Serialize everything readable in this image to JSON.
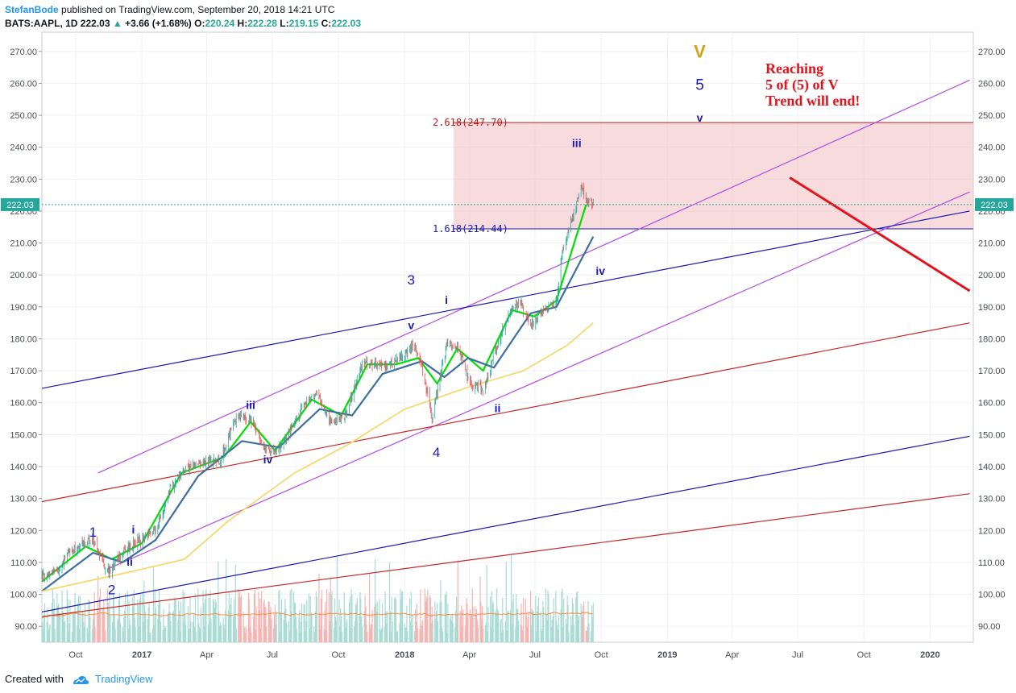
{
  "header": {
    "author": "StefanBode",
    "published": "published on TradingView.com, September 20, 2018 14:21 UTC",
    "symbol": "BATS:AAPL, 1D",
    "last": "222.03",
    "change": "+3.66 (+1.68%)",
    "o_label": "O:",
    "o_value": "220.24",
    "h_label": "H:",
    "h_value": "222.28",
    "l_label": "L:",
    "l_value": "219.15",
    "c_label": "C:",
    "c_value": "222.03"
  },
  "footer": {
    "created_with": "Created with",
    "brand": "TradingView"
  },
  "annotation": {
    "line1": "Reaching",
    "line2": "5 of (5) of V",
    "line3": "Trend will end!"
  },
  "colors": {
    "up": "#26a69a",
    "down": "#ef5350",
    "fib_zone": "#f4c7c9",
    "channel_purple": "#b44ce6",
    "channel_navy": "#1a1ab0",
    "channel_red": "#c62828",
    "ma_green": "#00e000",
    "ma_red": "#d84a2a",
    "ma_steel": "#3d6f9e",
    "ma_yellow": "#f7d560",
    "wave_blue": "#1a1ab0",
    "wave_gold": "#d4a017",
    "trend_red": "#e3121b"
  },
  "chart_data": {
    "type": "candlestick",
    "symbol": "BATS:AAPL",
    "timeframe": "1D",
    "x_range": [
      "2016-08-15",
      "2020-03-01"
    ],
    "y_range": [
      85,
      276
    ],
    "y_ticks": [
      "270.00",
      "260.00",
      "250.00",
      "240.00",
      "230.00",
      "220.00",
      "210.00",
      "200.00",
      "190.00",
      "180.00",
      "170.00",
      "160.00",
      "150.00",
      "140.00",
      "130.00",
      "120.00",
      "110.00",
      "100.00",
      "90.00"
    ],
    "x_ticks": [
      {
        "date": "2016-10-01",
        "label": "Oct",
        "bold": false
      },
      {
        "date": "2017-01-01",
        "label": "2017",
        "bold": true
      },
      {
        "date": "2017-04-01",
        "label": "Apr",
        "bold": false
      },
      {
        "date": "2017-07-01",
        "label": "Jul",
        "bold": false
      },
      {
        "date": "2017-10-01",
        "label": "Oct",
        "bold": false
      },
      {
        "date": "2018-01-01",
        "label": "2018",
        "bold": true
      },
      {
        "date": "2018-04-01",
        "label": "Apr",
        "bold": false
      },
      {
        "date": "2018-07-01",
        "label": "Jul",
        "bold": false
      },
      {
        "date": "2018-10-01",
        "label": "Oct",
        "bold": false
      },
      {
        "date": "2019-01-01",
        "label": "2019",
        "bold": true
      },
      {
        "date": "2019-04-01",
        "label": "Apr",
        "bold": false
      },
      {
        "date": "2019-07-01",
        "label": "Jul",
        "bold": false
      },
      {
        "date": "2019-10-01",
        "label": "Oct",
        "bold": false
      },
      {
        "date": "2020-01-01",
        "label": "2020",
        "bold": true
      }
    ],
    "price_path": [
      [
        "2016-08-15",
        106
      ],
      [
        "2016-09-05",
        107
      ],
      [
        "2016-09-20",
        113
      ],
      [
        "2016-10-10",
        116
      ],
      [
        "2016-10-25",
        117
      ],
      [
        "2016-11-14",
        107
      ],
      [
        "2016-11-28",
        111
      ],
      [
        "2016-12-15",
        115
      ],
      [
        "2016-12-30",
        117
      ],
      [
        "2017-01-20",
        120
      ],
      [
        "2017-02-10",
        133
      ],
      [
        "2017-03-01",
        139
      ],
      [
        "2017-03-25",
        141
      ],
      [
        "2017-04-20",
        142
      ],
      [
        "2017-05-12",
        156
      ],
      [
        "2017-06-05",
        154
      ],
      [
        "2017-06-20",
        146
      ],
      [
        "2017-07-05",
        144
      ],
      [
        "2017-07-25",
        150
      ],
      [
        "2017-08-10",
        158
      ],
      [
        "2017-09-01",
        163
      ],
      [
        "2017-09-20",
        154
      ],
      [
        "2017-10-10",
        156
      ],
      [
        "2017-11-05",
        173
      ],
      [
        "2017-11-20",
        172
      ],
      [
        "2017-12-15",
        172
      ],
      [
        "2018-01-15",
        178
      ],
      [
        "2018-01-25",
        171
      ],
      [
        "2018-02-08",
        155
      ],
      [
        "2018-02-28",
        178
      ],
      [
        "2018-03-15",
        178
      ],
      [
        "2018-04-02",
        166
      ],
      [
        "2018-04-20",
        164
      ],
      [
        "2018-05-05",
        175
      ],
      [
        "2018-05-25",
        187
      ],
      [
        "2018-06-10",
        192
      ],
      [
        "2018-06-25",
        184
      ],
      [
        "2018-07-15",
        190
      ],
      [
        "2018-07-31",
        191
      ],
      [
        "2018-08-08",
        207
      ],
      [
        "2018-08-20",
        216
      ],
      [
        "2018-09-04",
        228
      ],
      [
        "2018-09-12",
        222
      ],
      [
        "2018-09-20",
        222
      ]
    ],
    "moving_averages": [
      {
        "color": "green",
        "points": [
          [
            "2016-08-15",
            104
          ],
          [
            "2016-10-15",
            115
          ],
          [
            "2016-11-20",
            111
          ],
          [
            "2017-01-01",
            116
          ],
          [
            "2017-02-25",
            138
          ],
          [
            "2017-04-25",
            143
          ],
          [
            "2017-06-01",
            154
          ],
          [
            "2017-07-05",
            145
          ],
          [
            "2017-08-25",
            161
          ],
          [
            "2017-10-05",
            156
          ],
          [
            "2017-11-10",
            172
          ],
          [
            "2017-12-20",
            172
          ],
          [
            "2018-01-20",
            174
          ],
          [
            "2018-02-15",
            166
          ],
          [
            "2018-03-15",
            177
          ],
          [
            "2018-04-20",
            170
          ],
          [
            "2018-05-30",
            189
          ],
          [
            "2018-06-30",
            187
          ],
          [
            "2018-07-31",
            192
          ],
          [
            "2018-09-10",
            222
          ]
        ]
      },
      {
        "color": "steel",
        "points": [
          [
            "2016-08-15",
            101
          ],
          [
            "2016-10-25",
            113
          ],
          [
            "2016-12-05",
            110
          ],
          [
            "2017-01-20",
            117
          ],
          [
            "2017-03-20",
            137
          ],
          [
            "2017-05-20",
            148
          ],
          [
            "2017-07-10",
            146
          ],
          [
            "2017-09-05",
            158
          ],
          [
            "2017-10-20",
            156
          ],
          [
            "2017-12-01",
            169
          ],
          [
            "2018-01-25",
            173
          ],
          [
            "2018-02-25",
            168
          ],
          [
            "2018-03-30",
            174
          ],
          [
            "2018-05-05",
            171
          ],
          [
            "2018-06-25",
            188
          ],
          [
            "2018-07-31",
            190
          ],
          [
            "2018-09-20",
            212
          ]
        ]
      },
      {
        "color": "yellow",
        "points": [
          [
            "2016-08-15",
            101
          ],
          [
            "2016-12-15",
            107
          ],
          [
            "2017-03-01",
            111
          ],
          [
            "2017-05-01",
            123
          ],
          [
            "2017-08-01",
            138
          ],
          [
            "2017-10-15",
            147
          ],
          [
            "2018-01-01",
            158
          ],
          [
            "2018-04-01",
            165
          ],
          [
            "2018-06-15",
            170
          ],
          [
            "2018-08-15",
            178
          ],
          [
            "2018-09-20",
            185
          ]
        ]
      }
    ],
    "volume_panel_y_range": [
      85,
      110
    ],
    "fib_levels": [
      {
        "label": "2.618(247.70)",
        "value": 247.7
      },
      {
        "label": "1.618(214.44)",
        "value": 214.44
      }
    ],
    "fib_zone": {
      "x_start": "2018-03-10",
      "y_from": 214.44,
      "y_to": 247.7
    },
    "current_price_label": "222.03",
    "channels": [
      {
        "color": "purple",
        "from": [
          "2016-11-01",
          138
        ],
        "to": [
          "2020-02-25",
          261
        ]
      },
      {
        "color": "purple",
        "from": [
          "2016-11-15",
          108
        ],
        "to": [
          "2020-02-25",
          226
        ]
      },
      {
        "color": "navy",
        "from": [
          "2016-08-15",
          164.5
        ],
        "to": [
          "2020-02-25",
          220
        ]
      },
      {
        "color": "navy",
        "from": [
          "2016-08-15",
          94.5
        ],
        "to": [
          "2020-02-25",
          149.5
        ]
      },
      {
        "color": "red",
        "from": [
          "2016-08-15",
          129
        ],
        "to": [
          "2020-02-25",
          185
        ]
      },
      {
        "color": "red",
        "from": [
          "2016-08-15",
          93
        ],
        "to": [
          "2020-02-25",
          131.5
        ]
      }
    ],
    "trend_line": {
      "from": [
        "2019-06-20",
        230.5
      ],
      "to": [
        "2020-02-25",
        195
      ]
    },
    "wave_labels": [
      {
        "text": "1",
        "date": "2016-10-25",
        "price": 118,
        "size": 17,
        "color": "blue"
      },
      {
        "text": "2",
        "date": "2016-11-20",
        "price": 100,
        "size": 17,
        "color": "blue"
      },
      {
        "text": "i",
        "date": "2016-12-20",
        "price": 119,
        "size": 14,
        "color": "blue",
        "bold": true
      },
      {
        "text": "ii",
        "date": "2016-12-15",
        "price": 109,
        "size": 14,
        "color": "blue",
        "bold": true
      },
      {
        "text": "iii",
        "date": "2017-06-01",
        "price": 158,
        "size": 14,
        "color": "blue",
        "bold": true
      },
      {
        "text": "iv",
        "date": "2017-06-25",
        "price": 141,
        "size": 14,
        "color": "blue",
        "bold": true
      },
      {
        "text": "v",
        "date": "2018-01-10",
        "price": 183,
        "size": 14,
        "color": "blue",
        "bold": true
      },
      {
        "text": "3",
        "date": "2018-01-10",
        "price": 197,
        "size": 17,
        "color": "blue"
      },
      {
        "text": "i",
        "date": "2018-02-28",
        "price": 191,
        "size": 14,
        "color": "blue",
        "bold": true
      },
      {
        "text": "4",
        "date": "2018-02-14",
        "price": 143,
        "size": 17,
        "color": "blue"
      },
      {
        "text": "ii",
        "date": "2018-05-10",
        "price": 157,
        "size": 14,
        "color": "blue",
        "bold": true
      },
      {
        "text": "iii",
        "date": "2018-08-28",
        "price": 240,
        "size": 14,
        "color": "blue",
        "bold": true
      },
      {
        "text": "iv",
        "date": "2018-09-30",
        "price": 200,
        "size": 14,
        "color": "blue",
        "bold": true
      },
      {
        "text": "v",
        "date": "2019-02-15",
        "price": 248,
        "size": 14,
        "color": "blue",
        "bold": true
      },
      {
        "text": "5",
        "date": "2019-02-15",
        "price": 258,
        "size": 19,
        "color": "blue"
      },
      {
        "text": "V",
        "date": "2019-02-15",
        "price": 268,
        "size": 22,
        "color": "gold",
        "bold": true
      }
    ]
  }
}
